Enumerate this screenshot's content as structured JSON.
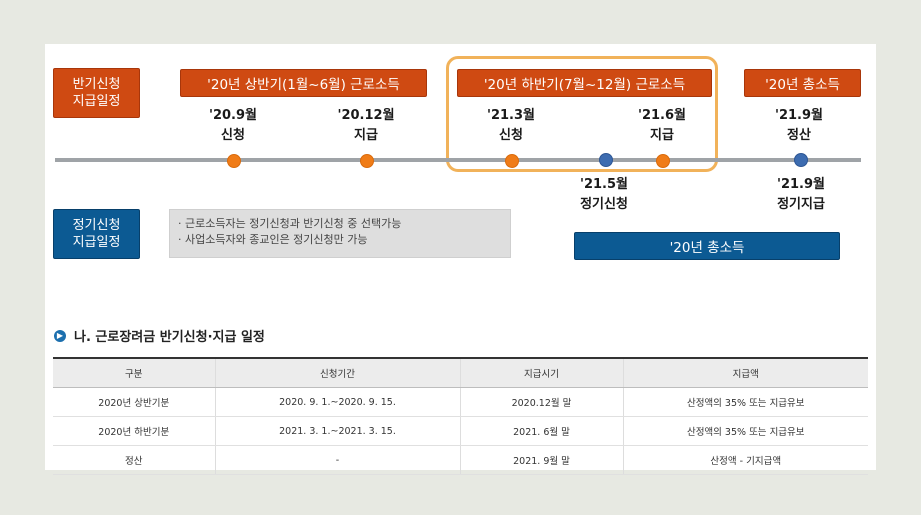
{
  "left_badges": {
    "half_year": [
      "반기신청",
      "지급일정"
    ],
    "regular": [
      "정기신청",
      "지급일정"
    ]
  },
  "period_labels": {
    "first_half": "'20년 상반기(1월~6월) 근로소득",
    "second_half": "'20년 하반기(7월~12월) 근로소득",
    "total_top": "'20년 총소득",
    "total_bottom": "'20년 총소득"
  },
  "timeline_top": [
    {
      "date": "'20.9월",
      "label": "신청"
    },
    {
      "date": "'20.12월",
      "label": "지급"
    },
    {
      "date": "'21.3월",
      "label": "신청"
    },
    {
      "date": "'21.6월",
      "label": "지급"
    },
    {
      "date": "'21.9월",
      "label": "정산"
    }
  ],
  "timeline_bottom": [
    {
      "date": "'21.5월",
      "label": "정기신청"
    },
    {
      "date": "'21.9월",
      "label": "정기지급"
    }
  ],
  "notes": [
    "· 근로소득자는 정기신청과 반기신청 중 선택가능",
    "· 사업소득자와 종교인은 정기신청만 가능"
  ],
  "section": {
    "icon_glyph": "▶",
    "title": "나. 근로장려금 반기신청·지급 일정"
  },
  "table": {
    "headers": [
      "구분",
      "신청기간",
      "지급시기",
      "지급액"
    ],
    "rows": [
      [
        "2020년 상반기분",
        "2020. 9. 1.~2020. 9. 15.",
        "2020.12월 말",
        "산정액의 35% 또는 지급유보"
      ],
      [
        "2020년 하반기분",
        "2021. 3. 1.~2021. 3. 15.",
        "2021. 6월 말",
        "산정액의 35% 또는 지급유보"
      ],
      [
        "정산",
        "-",
        "2021. 9월 말",
        "산정액 - 기지급액"
      ]
    ]
  },
  "colors": {
    "accent_red": "#cf4a12",
    "accent_blue": "#0c5a93",
    "dot_orange": "#f07c17",
    "dot_blue": "#3d6cb0",
    "highlight": "#f1b25a"
  }
}
